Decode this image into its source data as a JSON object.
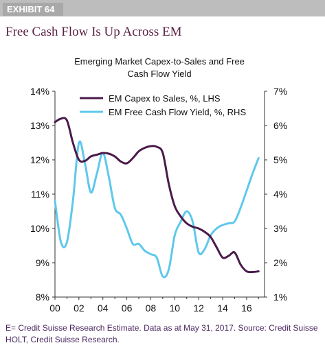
{
  "header": {
    "exhibit_label": "EXHIBIT 64",
    "title": "Free Cash Flow Is Up Across EM"
  },
  "chart_data": {
    "type": "line",
    "title": "Emerging Market Capex-to-Sales and Free Cash Flow Yield",
    "title_lines": [
      "Emerging Market Capex-to-Sales and Free",
      "Cash Flow Yield"
    ],
    "x_tick_labels": [
      "00",
      "02",
      "04",
      "06",
      "08",
      "10",
      "12",
      "14",
      "16"
    ],
    "xlim": [
      2000,
      2017.5
    ],
    "left_axis": {
      "ylim": [
        8,
        14
      ],
      "tick_labels": [
        "14%",
        "13%",
        "12%",
        "11%",
        "10%",
        "9%",
        "8%"
      ]
    },
    "right_axis": {
      "ylim": [
        1,
        7
      ],
      "tick_labels": [
        "7%",
        "6%",
        "5%",
        "4%",
        "3%",
        "2%",
        "1%"
      ]
    },
    "legend_position": "top",
    "grid": false,
    "series": [
      {
        "name": "EM Capex to Sales, %, LHS",
        "axis": "left",
        "color": "#4a1a4a",
        "x": [
          2000,
          2000.5,
          2001,
          2001.5,
          2002,
          2002.5,
          2003,
          2003.5,
          2004,
          2004.5,
          2005,
          2005.5,
          2006,
          2006.5,
          2007,
          2007.5,
          2008,
          2008.5,
          2009,
          2009.5,
          2010,
          2010.5,
          2011,
          2011.5,
          2012,
          2012.5,
          2013,
          2013.5,
          2014,
          2014.5,
          2015,
          2015.5,
          2016,
          2016.5,
          2017
        ],
        "values": [
          13.1,
          13.2,
          13.15,
          12.5,
          12.0,
          11.97,
          12.1,
          12.15,
          12.2,
          12.18,
          12.1,
          11.95,
          11.9,
          12.05,
          12.25,
          12.35,
          12.4,
          12.38,
          12.2,
          11.3,
          10.65,
          10.35,
          10.15,
          10.05,
          10.0,
          9.9,
          9.75,
          9.45,
          9.15,
          9.2,
          9.3,
          8.95,
          8.75,
          8.73,
          8.75
        ]
      },
      {
        "name": "EM Free Cash Flow Yield, %, RHS",
        "axis": "right",
        "color": "#5ec8ec",
        "x": [
          2000,
          2000.5,
          2001,
          2001.5,
          2002,
          2002.5,
          2003,
          2003.5,
          2004,
          2004.5,
          2005,
          2005.5,
          2006,
          2006.5,
          2007,
          2007.5,
          2008,
          2008.5,
          2009,
          2009.5,
          2010,
          2010.5,
          2011,
          2011.5,
          2012,
          2012.5,
          2013,
          2013.5,
          2014,
          2014.5,
          2015,
          2015.5,
          2016,
          2016.5,
          2017
        ],
        "values": [
          3.8,
          2.6,
          2.6,
          3.8,
          5.5,
          4.9,
          4.05,
          4.6,
          5.2,
          4.5,
          3.6,
          3.4,
          3.0,
          2.55,
          2.55,
          2.35,
          2.25,
          2.15,
          1.6,
          1.8,
          2.8,
          3.2,
          3.5,
          3.2,
          2.3,
          2.4,
          2.8,
          3.0,
          3.1,
          3.15,
          3.2,
          3.6,
          4.1,
          4.6,
          5.05
        ]
      }
    ]
  },
  "footnote": "E= Credit Suisse Research Estimate. Data as at May 31, 2017. Source: Credit Suisse HOLT, Credit Suisse Research."
}
